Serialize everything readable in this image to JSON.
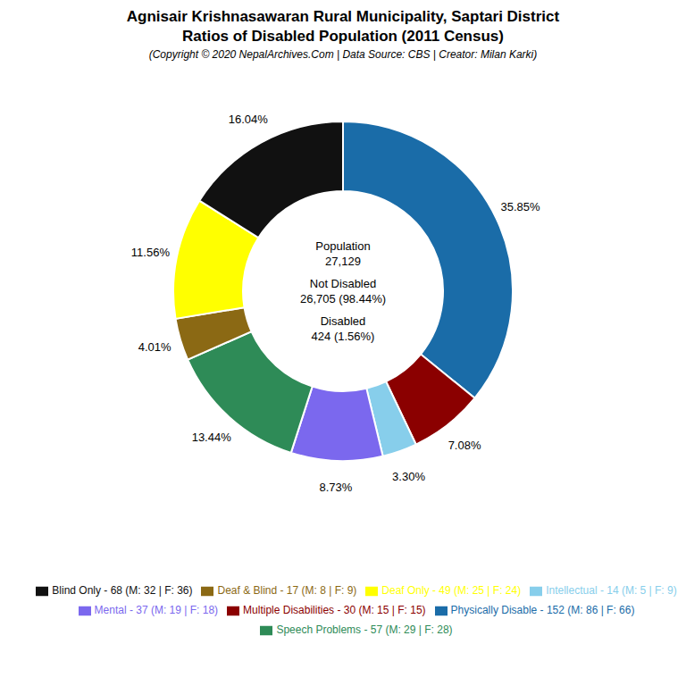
{
  "chart_data": {
    "type": "pie",
    "title": [
      "Agnisair Krishnasawaran Rural Municipality, Saptari District",
      "Ratios of Disabled Population (2011 Census)"
    ],
    "subtitle": "(Copyright © 2020 NepalArchives.Com | Data Source: CBS | Creator: Milan Karki)",
    "categories": [
      "Physically Disable - 152 (M: 86 | F: 66)",
      "Multiple Disabilities - 30 (M: 15 | F: 15)",
      "Intellectual - 14 (M: 5 | F: 9)",
      "Mental - 37 (M: 19 | F: 18)",
      "Speech Problems - 57 (M: 29 | F: 28)",
      "Deaf & Blind - 17 (M: 8 | F: 9)",
      "Deaf Only - 49 (M: 25 | F: 24)",
      "Blind Only - 68 (M: 32 | F: 36)"
    ],
    "values": [
      35.85,
      7.08,
      3.3,
      8.73,
      13.44,
      4.01,
      11.56,
      16.04
    ],
    "value_labels": [
      "35.85%",
      "7.08%",
      "3.30%",
      "8.73%",
      "13.44%",
      "4.01%",
      "11.56%",
      "16.04%"
    ],
    "colors": [
      "#1A6CA8",
      "#8B0000",
      "#87CEEB",
      "#7B68EE",
      "#2E8B57",
      "#8B6914",
      "#FFFF00",
      "#111111"
    ],
    "data_labels": true,
    "legend": "bottom",
    "annotations": [
      "Population",
      "27,129",
      "Not Disabled",
      "26,705 (98.44%)",
      "Disabled",
      "424 (1.56%)"
    ]
  }
}
